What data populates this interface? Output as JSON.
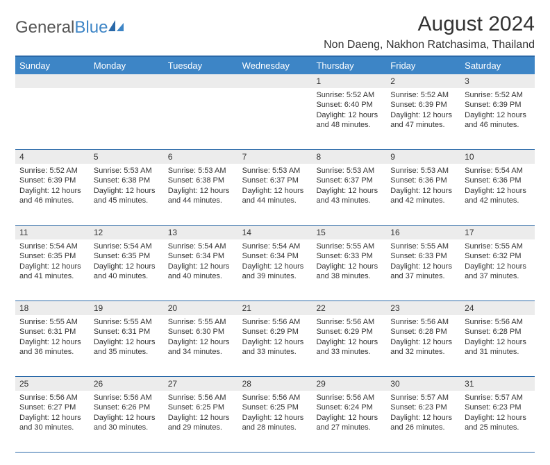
{
  "logo": {
    "text1": "General",
    "text2": "Blue"
  },
  "title": "August 2024",
  "location": "Non Daeng, Nakhon Ratchasima, Thailand",
  "colors": {
    "header_bg": "#3d85c6",
    "border": "#2968a8",
    "daynum_bg": "#ececec",
    "text": "#333333",
    "page_bg": "#ffffff"
  },
  "day_headers": [
    "Sunday",
    "Monday",
    "Tuesday",
    "Wednesday",
    "Thursday",
    "Friday",
    "Saturday"
  ],
  "weeks": [
    [
      {
        "n": "",
        "sunrise": "",
        "sunset": "",
        "daylight": ""
      },
      {
        "n": "",
        "sunrise": "",
        "sunset": "",
        "daylight": ""
      },
      {
        "n": "",
        "sunrise": "",
        "sunset": "",
        "daylight": ""
      },
      {
        "n": "",
        "sunrise": "",
        "sunset": "",
        "daylight": ""
      },
      {
        "n": "1",
        "sunrise": "Sunrise: 5:52 AM",
        "sunset": "Sunset: 6:40 PM",
        "daylight": "Daylight: 12 hours and 48 minutes."
      },
      {
        "n": "2",
        "sunrise": "Sunrise: 5:52 AM",
        "sunset": "Sunset: 6:39 PM",
        "daylight": "Daylight: 12 hours and 47 minutes."
      },
      {
        "n": "3",
        "sunrise": "Sunrise: 5:52 AM",
        "sunset": "Sunset: 6:39 PM",
        "daylight": "Daylight: 12 hours and 46 minutes."
      }
    ],
    [
      {
        "n": "4",
        "sunrise": "Sunrise: 5:52 AM",
        "sunset": "Sunset: 6:39 PM",
        "daylight": "Daylight: 12 hours and 46 minutes."
      },
      {
        "n": "5",
        "sunrise": "Sunrise: 5:53 AM",
        "sunset": "Sunset: 6:38 PM",
        "daylight": "Daylight: 12 hours and 45 minutes."
      },
      {
        "n": "6",
        "sunrise": "Sunrise: 5:53 AM",
        "sunset": "Sunset: 6:38 PM",
        "daylight": "Daylight: 12 hours and 44 minutes."
      },
      {
        "n": "7",
        "sunrise": "Sunrise: 5:53 AM",
        "sunset": "Sunset: 6:37 PM",
        "daylight": "Daylight: 12 hours and 44 minutes."
      },
      {
        "n": "8",
        "sunrise": "Sunrise: 5:53 AM",
        "sunset": "Sunset: 6:37 PM",
        "daylight": "Daylight: 12 hours and 43 minutes."
      },
      {
        "n": "9",
        "sunrise": "Sunrise: 5:53 AM",
        "sunset": "Sunset: 6:36 PM",
        "daylight": "Daylight: 12 hours and 42 minutes."
      },
      {
        "n": "10",
        "sunrise": "Sunrise: 5:54 AM",
        "sunset": "Sunset: 6:36 PM",
        "daylight": "Daylight: 12 hours and 42 minutes."
      }
    ],
    [
      {
        "n": "11",
        "sunrise": "Sunrise: 5:54 AM",
        "sunset": "Sunset: 6:35 PM",
        "daylight": "Daylight: 12 hours and 41 minutes."
      },
      {
        "n": "12",
        "sunrise": "Sunrise: 5:54 AM",
        "sunset": "Sunset: 6:35 PM",
        "daylight": "Daylight: 12 hours and 40 minutes."
      },
      {
        "n": "13",
        "sunrise": "Sunrise: 5:54 AM",
        "sunset": "Sunset: 6:34 PM",
        "daylight": "Daylight: 12 hours and 40 minutes."
      },
      {
        "n": "14",
        "sunrise": "Sunrise: 5:54 AM",
        "sunset": "Sunset: 6:34 PM",
        "daylight": "Daylight: 12 hours and 39 minutes."
      },
      {
        "n": "15",
        "sunrise": "Sunrise: 5:55 AM",
        "sunset": "Sunset: 6:33 PM",
        "daylight": "Daylight: 12 hours and 38 minutes."
      },
      {
        "n": "16",
        "sunrise": "Sunrise: 5:55 AM",
        "sunset": "Sunset: 6:33 PM",
        "daylight": "Daylight: 12 hours and 37 minutes."
      },
      {
        "n": "17",
        "sunrise": "Sunrise: 5:55 AM",
        "sunset": "Sunset: 6:32 PM",
        "daylight": "Daylight: 12 hours and 37 minutes."
      }
    ],
    [
      {
        "n": "18",
        "sunrise": "Sunrise: 5:55 AM",
        "sunset": "Sunset: 6:31 PM",
        "daylight": "Daylight: 12 hours and 36 minutes."
      },
      {
        "n": "19",
        "sunrise": "Sunrise: 5:55 AM",
        "sunset": "Sunset: 6:31 PM",
        "daylight": "Daylight: 12 hours and 35 minutes."
      },
      {
        "n": "20",
        "sunrise": "Sunrise: 5:55 AM",
        "sunset": "Sunset: 6:30 PM",
        "daylight": "Daylight: 12 hours and 34 minutes."
      },
      {
        "n": "21",
        "sunrise": "Sunrise: 5:56 AM",
        "sunset": "Sunset: 6:29 PM",
        "daylight": "Daylight: 12 hours and 33 minutes."
      },
      {
        "n": "22",
        "sunrise": "Sunrise: 5:56 AM",
        "sunset": "Sunset: 6:29 PM",
        "daylight": "Daylight: 12 hours and 33 minutes."
      },
      {
        "n": "23",
        "sunrise": "Sunrise: 5:56 AM",
        "sunset": "Sunset: 6:28 PM",
        "daylight": "Daylight: 12 hours and 32 minutes."
      },
      {
        "n": "24",
        "sunrise": "Sunrise: 5:56 AM",
        "sunset": "Sunset: 6:28 PM",
        "daylight": "Daylight: 12 hours and 31 minutes."
      }
    ],
    [
      {
        "n": "25",
        "sunrise": "Sunrise: 5:56 AM",
        "sunset": "Sunset: 6:27 PM",
        "daylight": "Daylight: 12 hours and 30 minutes."
      },
      {
        "n": "26",
        "sunrise": "Sunrise: 5:56 AM",
        "sunset": "Sunset: 6:26 PM",
        "daylight": "Daylight: 12 hours and 30 minutes."
      },
      {
        "n": "27",
        "sunrise": "Sunrise: 5:56 AM",
        "sunset": "Sunset: 6:25 PM",
        "daylight": "Daylight: 12 hours and 29 minutes."
      },
      {
        "n": "28",
        "sunrise": "Sunrise: 5:56 AM",
        "sunset": "Sunset: 6:25 PM",
        "daylight": "Daylight: 12 hours and 28 minutes."
      },
      {
        "n": "29",
        "sunrise": "Sunrise: 5:56 AM",
        "sunset": "Sunset: 6:24 PM",
        "daylight": "Daylight: 12 hours and 27 minutes."
      },
      {
        "n": "30",
        "sunrise": "Sunrise: 5:57 AM",
        "sunset": "Sunset: 6:23 PM",
        "daylight": "Daylight: 12 hours and 26 minutes."
      },
      {
        "n": "31",
        "sunrise": "Sunrise: 5:57 AM",
        "sunset": "Sunset: 6:23 PM",
        "daylight": "Daylight: 12 hours and 25 minutes."
      }
    ]
  ]
}
